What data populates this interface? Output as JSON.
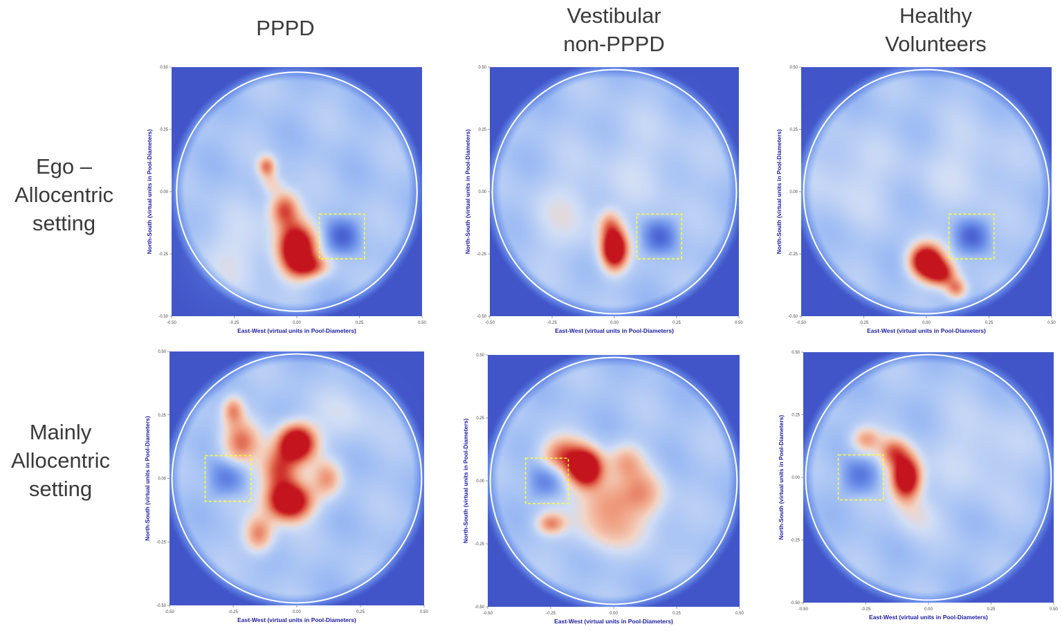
{
  "columns": {
    "c1": "PPPD",
    "c2": {
      "line1": "Vestibular",
      "line2": "non-PPPD"
    },
    "c3": {
      "line1": "Healthy",
      "line2": "Volunteers"
    }
  },
  "rows": {
    "r1": {
      "line1": "Ego –",
      "line2": "Allocentric",
      "line3": "setting"
    },
    "r2": {
      "line1": "Mainly",
      "line2": "Allocentric",
      "line3": "setting"
    }
  },
  "colors": {
    "background": "#4255c8",
    "circle": "#ffffff",
    "platform": "#ffff33"
  },
  "chart_data": [
    {
      "type": "heatmap",
      "id": "p11",
      "column": "PPPD",
      "row": "Ego – Allocentric setting",
      "xlabel": "East-West (virtual units in Pool-Diameters)",
      "ylabel": "North-South (virtual units in Pool-Diameters)",
      "xlim": [
        -0.5,
        0.5
      ],
      "ylim": [
        -0.5,
        0.5
      ],
      "x_ticks": [
        "-0.50",
        "-0.25",
        "0.00",
        "0.25",
        "0.50"
      ],
      "y_ticks": [
        "-0.50",
        "-0.25",
        "0.00",
        "0.25",
        "0.50"
      ],
      "pool_radius": 0.48,
      "platform": {
        "x": [
          0.09,
          0.27
        ],
        "y": [
          -0.27,
          -0.09
        ]
      },
      "hotspots": [
        {
          "x": 0.0,
          "y": -0.23,
          "sx": 0.05,
          "sy": 0.07,
          "w": 1.0
        },
        {
          "x": -0.05,
          "y": -0.07,
          "sx": 0.04,
          "sy": 0.05,
          "w": 0.55
        },
        {
          "x": 0.06,
          "y": -0.3,
          "sx": 0.05,
          "sy": 0.03,
          "w": 0.4
        },
        {
          "x": -0.12,
          "y": 0.1,
          "sx": 0.025,
          "sy": 0.03,
          "w": 0.45
        },
        {
          "x": -0.1,
          "y": 0.03,
          "sx": 0.03,
          "sy": 0.03,
          "w": 0.2
        },
        {
          "x": -0.25,
          "y": -0.25,
          "sx": 0.12,
          "sy": 0.12,
          "w": 0.12
        }
      ]
    },
    {
      "type": "heatmap",
      "id": "p12",
      "column": "Vestibular non-PPPD",
      "row": "Ego – Allocentric setting",
      "xlabel": "East-West (virtual units in Pool-Diameters)",
      "ylabel": "North-South (virtual units in Pool-Diameters)",
      "xlim": [
        -0.5,
        0.5
      ],
      "ylim": [
        -0.5,
        0.5
      ],
      "x_ticks": [
        "-0.50",
        "-0.25",
        "0.00",
        "0.25",
        "0.50"
      ],
      "y_ticks": [
        "-0.50",
        "-0.25",
        "0.00",
        "0.25",
        "0.50"
      ],
      "pool_radius": 0.49,
      "platform": {
        "x": [
          0.09,
          0.27
        ],
        "y": [
          -0.27,
          -0.09
        ]
      },
      "hotspots": [
        {
          "x": 0.0,
          "y": -0.23,
          "sx": 0.035,
          "sy": 0.055,
          "w": 1.0
        },
        {
          "x": -0.02,
          "y": -0.13,
          "sx": 0.03,
          "sy": 0.04,
          "w": 0.3
        },
        {
          "x": -0.2,
          "y": -0.1,
          "sx": 0.1,
          "sy": 0.12,
          "w": 0.12
        },
        {
          "x": 0.1,
          "y": 0.1,
          "sx": 0.15,
          "sy": 0.15,
          "w": 0.08
        }
      ]
    },
    {
      "type": "heatmap",
      "id": "p13",
      "column": "Healthy Volunteers",
      "row": "Ego – Allocentric setting",
      "xlabel": "East-West (virtual units in Pool-Diameters)",
      "ylabel": "North-South (virtual units in Pool-Diameters)",
      "xlim": [
        -0.5,
        0.5
      ],
      "ylim": [
        -0.5,
        0.5
      ],
      "x_ticks": [
        "-0.50",
        "-0.25",
        "0.00",
        "0.25",
        "0.50"
      ],
      "y_ticks": [
        "-0.50",
        "-0.25",
        "0.00",
        "0.25",
        "0.50"
      ],
      "pool_radius": 0.49,
      "platform": {
        "x": [
          0.09,
          0.27
        ],
        "y": [
          -0.27,
          -0.09
        ]
      },
      "hotspots": [
        {
          "x": 0.0,
          "y": -0.28,
          "sx": 0.045,
          "sy": 0.045,
          "w": 1.0
        },
        {
          "x": 0.06,
          "y": -0.33,
          "sx": 0.04,
          "sy": 0.035,
          "w": 0.6
        },
        {
          "x": 0.12,
          "y": -0.39,
          "sx": 0.03,
          "sy": 0.03,
          "w": 0.45
        },
        {
          "x": -0.3,
          "y": 0.05,
          "sx": 0.12,
          "sy": 0.12,
          "w": 0.1
        },
        {
          "x": 0.15,
          "y": 0.1,
          "sx": 0.12,
          "sy": 0.12,
          "w": 0.1
        }
      ]
    },
    {
      "type": "heatmap",
      "id": "p21",
      "column": "PPPD",
      "row": "Mainly Allocentric setting",
      "xlabel": "East-West (virtual units in Pool-Diameters)",
      "ylabel": "North-South (virtual units in Pool-Diameters)",
      "xlim": [
        -0.5,
        0.5
      ],
      "ylim": [
        -0.5,
        0.5
      ],
      "x_ticks": [
        "-0.50",
        "-0.25",
        "0.00",
        "0.25",
        "0.50"
      ],
      "y_ticks": [
        "-0.50",
        "-0.25",
        "0.00",
        "0.25",
        "0.50"
      ],
      "pool_radius": 0.49,
      "platform": {
        "x": [
          -0.36,
          -0.18
        ],
        "y": [
          -0.09,
          0.09
        ]
      },
      "hotspots": [
        {
          "x": 0.0,
          "y": 0.14,
          "sx": 0.05,
          "sy": 0.05,
          "w": 1.0
        },
        {
          "x": -0.03,
          "y": -0.09,
          "sx": 0.06,
          "sy": 0.05,
          "w": 1.0
        },
        {
          "x": -0.07,
          "y": 0.03,
          "sx": 0.05,
          "sy": 0.06,
          "w": 0.55
        },
        {
          "x": -0.22,
          "y": 0.14,
          "sx": 0.05,
          "sy": 0.06,
          "w": 0.45
        },
        {
          "x": -0.25,
          "y": 0.27,
          "sx": 0.03,
          "sy": 0.04,
          "w": 0.4
        },
        {
          "x": -0.15,
          "y": -0.22,
          "sx": 0.04,
          "sy": 0.05,
          "w": 0.45
        },
        {
          "x": 0.12,
          "y": 0.0,
          "sx": 0.04,
          "sy": 0.05,
          "w": 0.35
        },
        {
          "x": 0.2,
          "y": 0.25,
          "sx": 0.1,
          "sy": 0.08,
          "w": 0.1
        }
      ]
    },
    {
      "type": "heatmap",
      "id": "p22",
      "column": "Vestibular non-PPPD",
      "row": "Mainly Allocentric setting",
      "xlabel": "East-West (virtual units in Pool-Diameters)",
      "ylabel": "North-South (virtual units in Pool-Diameters)",
      "xlim": [
        -0.5,
        0.5
      ],
      "ylim": [
        -0.5,
        0.5
      ],
      "x_ticks": [
        "-0.50",
        "-0.25",
        "0.00",
        "0.25",
        "0.50"
      ],
      "y_ticks": [
        "-0.50",
        "-0.25",
        "0.00",
        "0.25",
        "0.50"
      ],
      "pool_radius": 0.49,
      "platform": {
        "x": [
          -0.35,
          -0.18
        ],
        "y": [
          -0.09,
          0.09
        ]
      },
      "hotspots": [
        {
          "x": -0.11,
          "y": 0.05,
          "sx": 0.045,
          "sy": 0.05,
          "w": 1.0
        },
        {
          "x": -0.2,
          "y": 0.1,
          "sx": 0.06,
          "sy": 0.05,
          "w": 0.5
        },
        {
          "x": -0.03,
          "y": -0.08,
          "sx": 0.08,
          "sy": 0.07,
          "w": 0.35
        },
        {
          "x": 0.12,
          "y": -0.05,
          "sx": 0.06,
          "sy": 0.07,
          "w": 0.33
        },
        {
          "x": 0.05,
          "y": 0.08,
          "sx": 0.05,
          "sy": 0.05,
          "w": 0.28
        },
        {
          "x": -0.25,
          "y": -0.17,
          "sx": 0.04,
          "sy": 0.03,
          "w": 0.4
        },
        {
          "x": 0.0,
          "y": -0.2,
          "sx": 0.12,
          "sy": 0.06,
          "w": 0.2
        }
      ]
    },
    {
      "type": "heatmap",
      "id": "p23",
      "column": "Healthy Volunteers",
      "row": "Mainly Allocentric setting",
      "xlabel": "East-West (virtual units in Pool-Diameters)",
      "ylabel": "North-South (virtual units in Pool-Diameters)",
      "xlim": [
        -0.5,
        0.5
      ],
      "ylim": [
        -0.5,
        0.5
      ],
      "x_ticks": [
        "-0.50",
        "-0.25",
        "0.00",
        "0.25",
        "0.50"
      ],
      "y_ticks": [
        "-0.50",
        "-0.25",
        "0.00",
        "0.25",
        "0.50"
      ],
      "pool_radius": 0.49,
      "platform": {
        "x": [
          -0.36,
          -0.18
        ],
        "y": [
          -0.09,
          0.09
        ]
      },
      "hotspots": [
        {
          "x": -0.09,
          "y": 0.0,
          "sx": 0.04,
          "sy": 0.06,
          "w": 1.0
        },
        {
          "x": -0.14,
          "y": 0.1,
          "sx": 0.04,
          "sy": 0.04,
          "w": 0.45
        },
        {
          "x": -0.25,
          "y": 0.15,
          "sx": 0.04,
          "sy": 0.035,
          "w": 0.35
        },
        {
          "x": -0.05,
          "y": -0.15,
          "sx": 0.06,
          "sy": 0.06,
          "w": 0.15
        },
        {
          "x": 0.2,
          "y": 0.1,
          "sx": 0.12,
          "sy": 0.12,
          "w": 0.1
        }
      ]
    }
  ]
}
